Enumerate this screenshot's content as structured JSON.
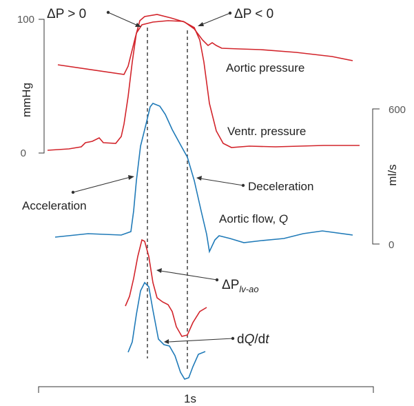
{
  "colors": {
    "pressure": "#d2232a",
    "flow": "#1f7ab8",
    "ink": "#333333"
  },
  "left_axis": {
    "unit": "mmHg",
    "tick_top": "100",
    "tick_bottom": "0"
  },
  "right_axis": {
    "unit": "ml/s",
    "tick_top": "600",
    "tick_bottom": "0"
  },
  "time_axis": {
    "label": "1s"
  },
  "labels": {
    "dp_positive": "ΔP > 0",
    "dp_negative": "ΔP < 0",
    "aortic_pressure": "Aortic pressure",
    "ventr_pressure": "Ventr. pressure",
    "acceleration": "Acceleration",
    "deceleration": "Deceleration",
    "aortic_flow_prefix": "Aortic flow, ",
    "aortic_flow_symbol": "Q",
    "dp_lvao_main": "ΔP",
    "dp_lvao_sub": "lv-ao",
    "dqdt_d1": "d",
    "dqdt_q": "Q",
    "dqdt_slash_d": "/d",
    "dqdt_t": "t"
  }
}
